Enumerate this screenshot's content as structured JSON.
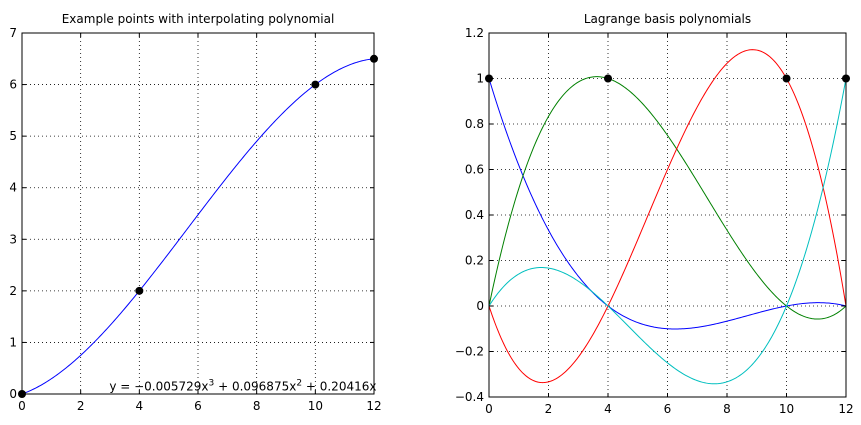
{
  "chart_data": [
    {
      "type": "line",
      "title": "Example points with interpolating polynomial",
      "xlim": [
        0,
        12
      ],
      "ylim": [
        0,
        7
      ],
      "xticks": [
        0,
        2,
        4,
        6,
        8,
        10,
        12
      ],
      "yticks": [
        0,
        1,
        2,
        3,
        4,
        5,
        6,
        7
      ],
      "grid": true,
      "points": [
        {
          "x": 0,
          "y": 0
        },
        {
          "x": 4,
          "y": 2
        },
        {
          "x": 10,
          "y": 6
        },
        {
          "x": 12,
          "y": 6.5
        }
      ],
      "curve": {
        "coefficients": [
          -0.005729,
          0.096875,
          0.20416,
          0
        ],
        "color": "#0000ff"
      },
      "annotation": {
        "parts": [
          "y = −0.005729x",
          "3",
          " + 0.096875x",
          "2",
          " + 0.20416x"
        ],
        "x": 1.0,
        "y": 0.05
      },
      "marker_color": "#000000"
    },
    {
      "type": "line",
      "title": "Lagrange basis polynomials",
      "xlim": [
        0,
        12
      ],
      "ylim": [
        -0.4,
        1.2
      ],
      "xticks": [
        0,
        2,
        4,
        6,
        8,
        10,
        12
      ],
      "yticks": [
        -0.4,
        -0.2,
        0,
        0.2,
        0.4,
        0.6,
        0.8,
        1,
        1.2
      ],
      "grid": true,
      "nodes": [
        0,
        4,
        10,
        12
      ],
      "series": [
        {
          "node_index": 0,
          "color": "#0000ff"
        },
        {
          "node_index": 1,
          "color": "#008000"
        },
        {
          "node_index": 2,
          "color": "#ff0000"
        },
        {
          "node_index": 3,
          "color": "#00bfbf"
        }
      ],
      "points": [
        {
          "x": 0,
          "y": 1
        },
        {
          "x": 4,
          "y": 1
        },
        {
          "x": 10,
          "y": 1
        },
        {
          "x": 12,
          "y": 1
        }
      ],
      "marker_color": "#000000"
    }
  ]
}
